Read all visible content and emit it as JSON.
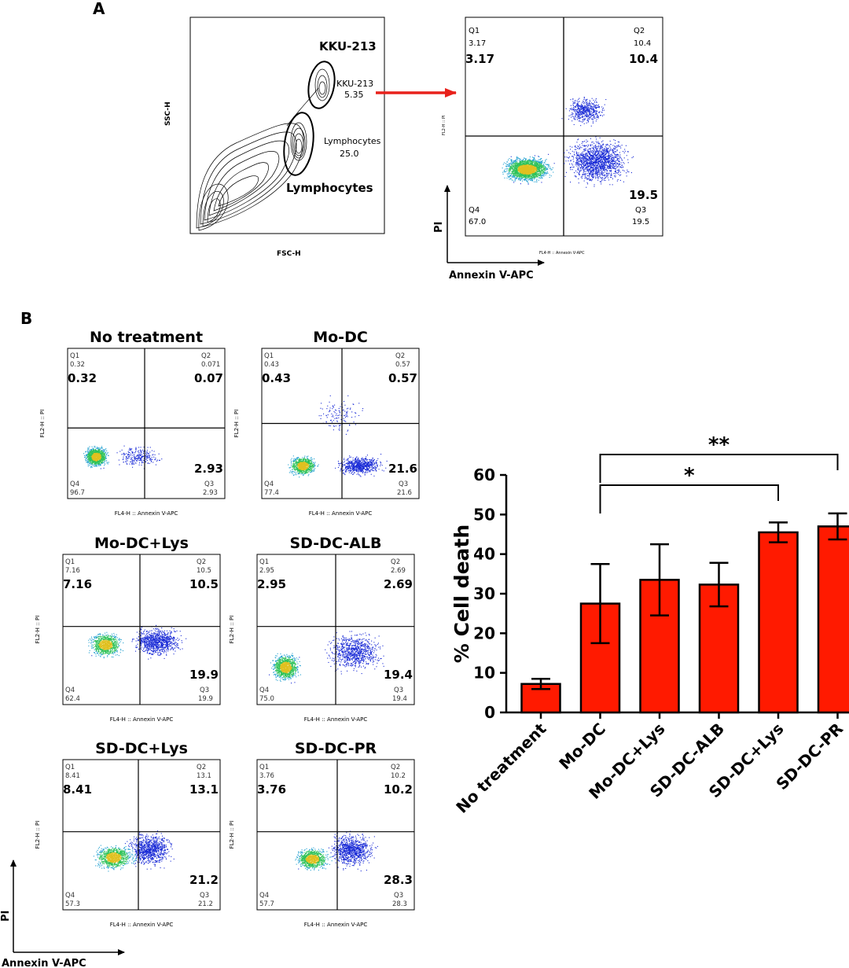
{
  "panel_a": {
    "label": "A",
    "gating": {
      "xlabel": "FSC-H",
      "ylabel": "SSC-H",
      "gates": [
        {
          "name": "KKU-213",
          "big_label": "KKU-213",
          "small_label": "KKU-213",
          "value": "5.35"
        },
        {
          "name": "Lymphocytes",
          "big_label": "Lymphocytes",
          "small_label": "Lymphocytes",
          "value": "25.0"
        }
      ]
    },
    "quadrant": {
      "x_axis_text": "FL4-H :: Annexin V-APC",
      "y_axis_text": "FL2-H :: PI",
      "q1_small": "3.17",
      "q2_small": "10.4",
      "q3_small": "19.5",
      "q4_small": "67.0",
      "q1_big": "3.17",
      "q2_big": "10.4",
      "q3_big": "19.5"
    },
    "axis_arrow_x": "Annexin V-APC",
    "axis_arrow_y": "PI"
  },
  "panel_b": {
    "label": "B",
    "quadrant_names": {
      "q1": "Q1",
      "q2": "Q2",
      "q3": "Q3",
      "q4": "Q4"
    },
    "plot_x_axis_text": "FL4-H :: Annexin V-APC",
    "plot_y_axis_text": "FL2-H :: PI",
    "plots": [
      {
        "title": "No treatment",
        "q1_small": "0.32",
        "q2_small": "0.071",
        "q3_small": "2.93",
        "q4_small": "96.7",
        "q1_big": "0.32",
        "q2_big": "0.07",
        "q3_big": "2.93"
      },
      {
        "title": "Mo-DC",
        "q1_small": "0.43",
        "q2_small": "0.57",
        "q3_small": "21.6",
        "q4_small": "77.4",
        "q1_big": "0.43",
        "q2_big": "0.57",
        "q3_big": "21.6"
      },
      {
        "title": "Mo-DC+Lys",
        "q1_small": "7.16",
        "q2_small": "10.5",
        "q3_small": "19.9",
        "q4_small": "62.4",
        "q1_big": "7.16",
        "q2_big": "10.5",
        "q3_big": "19.9"
      },
      {
        "title": "SD-DC-ALB",
        "q1_small": "2.95",
        "q2_small": "2.69",
        "q3_small": "19.4",
        "q4_small": "75.0",
        "q1_big": "2.95",
        "q2_big": "2.69",
        "q3_big": "19.4"
      },
      {
        "title": "SD-DC+Lys",
        "q1_small": "8.41",
        "q2_small": "13.1",
        "q3_small": "21.2",
        "q4_small": "57.3",
        "q1_big": "8.41",
        "q2_big": "13.1",
        "q3_big": "21.2"
      },
      {
        "title": "SD-DC-PR",
        "q1_small": "3.76",
        "q2_small": "10.2",
        "q3_small": "28.3",
        "q4_small": "57.7",
        "q1_big": "3.76",
        "q2_big": "10.2",
        "q3_big": "28.3"
      }
    ],
    "axis_arrow_x": "Annexin V-APC",
    "axis_arrow_y": "PI"
  },
  "chart_data": {
    "type": "bar",
    "title": "",
    "xlabel": "",
    "ylabel": "% Cell death",
    "categories": [
      "No treatment",
      "Mo-DC",
      "Mo-DC+Lys",
      "SD-DC-ALB",
      "SD-DC+Lys",
      "SD-DC-PR"
    ],
    "values": [
      7.2,
      27.5,
      33.5,
      32.3,
      45.5,
      47.0
    ],
    "errors": [
      1.3,
      10.0,
      9.0,
      5.5,
      2.5,
      3.3
    ],
    "ylim": [
      0,
      60
    ],
    "yticks": [
      0,
      10,
      20,
      30,
      40,
      50,
      60
    ],
    "bar_color": "#ff1a00",
    "significance": [
      {
        "from": "Mo-DC",
        "to": "SD-DC+Lys",
        "label": "*"
      },
      {
        "from": "Mo-DC",
        "to": "SD-DC-PR",
        "label": "**"
      }
    ],
    "grid": false
  }
}
